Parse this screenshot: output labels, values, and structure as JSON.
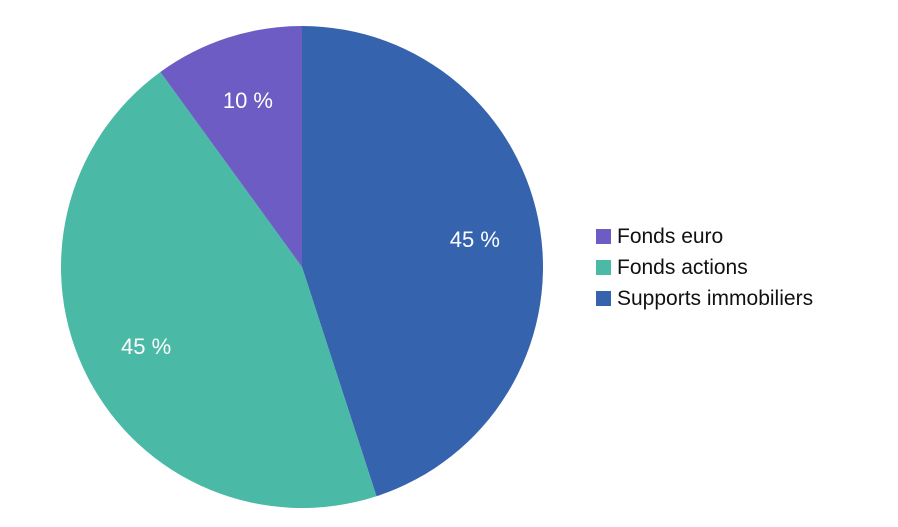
{
  "chart_data": {
    "type": "pie",
    "start_angle_deg": 0,
    "direction": "clockwise",
    "slices": [
      {
        "label": "Supports immobiliers",
        "value": 45,
        "value_label": "45 %",
        "color": "#3563ae"
      },
      {
        "label": "Fonds actions",
        "value": 45,
        "value_label": "45 %",
        "color": "#4ab9a5"
      },
      {
        "label": "Fonds euro",
        "value": 10,
        "value_label": "10 %",
        "color": "#6d5cc3"
      }
    ],
    "legend": {
      "placement": "right",
      "entries": [
        "Fonds euro",
        "Fonds actions",
        "Supports immobiliers"
      ]
    }
  }
}
